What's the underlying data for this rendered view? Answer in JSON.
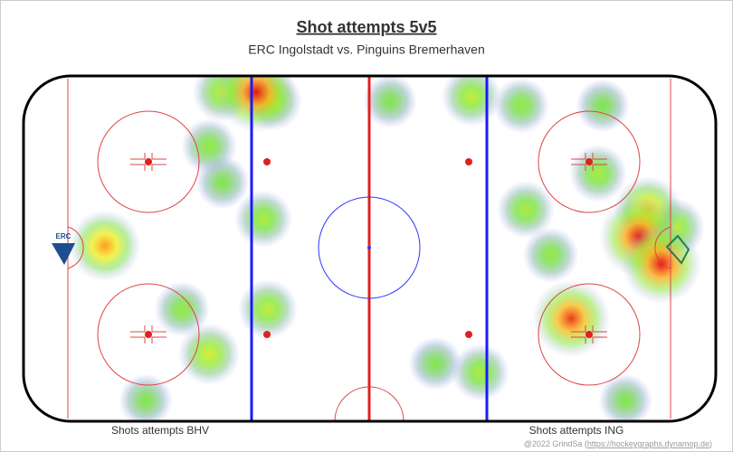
{
  "chart_data": {
    "type": "heatmap",
    "title": "Shot attempts 5v5",
    "subtitle": "ERC Ingolstadt vs. Pinguins Bremerhaven",
    "left_label": "Shots attempts BHV",
    "right_label": "Shots attempts ING",
    "credit": "@2022 GrindSa (",
    "credit_link": "https://hockeygraphs.dynamop.de",
    "credit_end": ")",
    "logo_text": "ERC",
    "xlim": [
      -100,
      100
    ],
    "ylim": [
      -42.5,
      42.5
    ],
    "x": [
      -32.8,
      -42.5,
      -28.1,
      -76.5,
      58.2,
      77.8,
      84.3,
      80.4,
      29.4,
      5.9,
      43.8,
      67.3,
      -30.7,
      -29.4,
      -46.4,
      -54.2,
      -64.7,
      45.1,
      32.0,
      52.3,
      73.9,
      -46.4,
      -42.5,
      19.0,
      66.0,
      88.2
    ],
    "y": [
      38.5,
      38.5,
      36.3,
      0.7,
      -17.2,
      2.9,
      -3.8,
      9.6,
      37.4,
      36.3,
      35.2,
      35.2,
      7.3,
      -14.9,
      -26.0,
      -14.9,
      -37.4,
      9.6,
      -30.5,
      -1.6,
      -37.4,
      25.2,
      16.3,
      -28.3,
      18.5,
      5.1
    ],
    "values": [
      1.0,
      0.5,
      0.5,
      0.8,
      0.95,
      1.0,
      1.0,
      0.7,
      0.5,
      0.35,
      0.4,
      0.35,
      0.45,
      0.5,
      0.55,
      0.4,
      0.35,
      0.45,
      0.45,
      0.4,
      0.35,
      0.4,
      0.35,
      0.35,
      0.45,
      0.5
    ]
  }
}
